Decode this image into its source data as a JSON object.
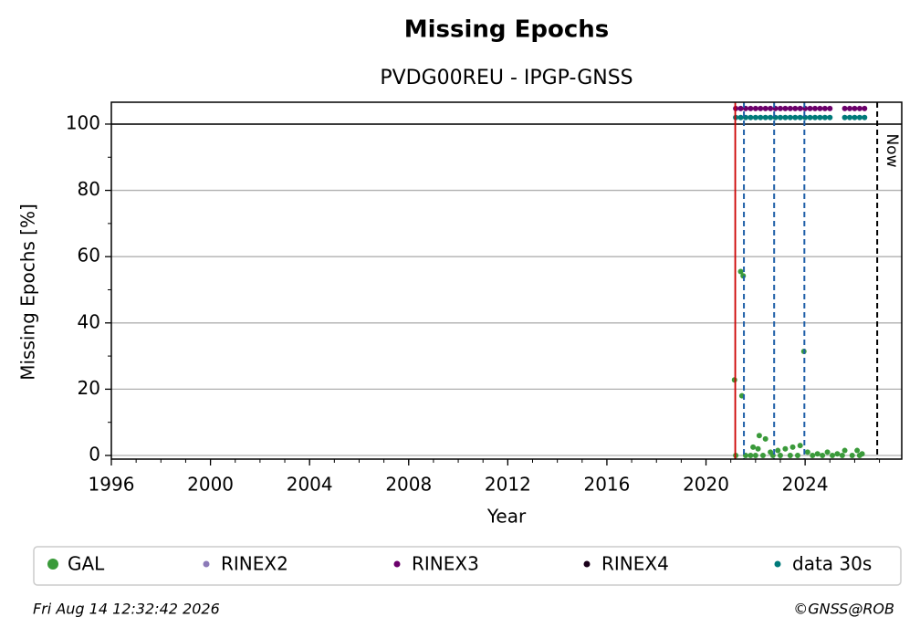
{
  "chart_data": {
    "type": "scatter",
    "title": "Missing Epochs",
    "subtitle": "PVDG00REU - IPGP-GNSS",
    "xlabel": "Year",
    "ylabel": "Missing Epochs [%]",
    "xlim": [
      1996,
      2027.9
    ],
    "ylim": [
      -1.1,
      106.6
    ],
    "xticks": [
      1996,
      2000,
      2004,
      2008,
      2012,
      2016,
      2020,
      2024
    ],
    "yticks": [
      0,
      20,
      40,
      60,
      80,
      100
    ],
    "grid": true,
    "hline": 100,
    "start_line": {
      "x": 2021.18,
      "color": "#cc0000"
    },
    "dashed_lines": {
      "x": [
        2021.53,
        2022.75,
        2023.97
      ],
      "color": "#1f5fa8"
    },
    "now": {
      "x": 2026.91,
      "label": "Now"
    },
    "series": [
      {
        "name": "GAL",
        "color": "#3a9a3a",
        "x": [
          2021.15,
          2021.2,
          2021.4,
          2021.5,
          2021.45,
          2023.95,
          2022.15,
          2022.4,
          2021.9,
          2022.1,
          2022.6,
          2022.9,
          2023.2,
          2023.5,
          2023.8,
          2024.1,
          2024.5,
          2024.9,
          2025.3,
          2025.6,
          2026.1,
          2026.3,
          2021.6,
          2021.8,
          2022.0,
          2022.3,
          2022.7,
          2023.0,
          2023.4,
          2023.7,
          2024.3,
          2024.7,
          2025.1,
          2025.5,
          2025.9,
          2026.2
        ],
        "values": [
          22.8,
          0,
          55.5,
          54.2,
          18,
          31.4,
          6,
          5,
          2.5,
          2,
          1,
          1.5,
          2,
          2.5,
          3,
          1,
          0.5,
          1,
          0.5,
          1.5,
          1.5,
          0.5,
          0,
          0,
          0,
          0,
          0,
          0,
          0,
          0,
          0,
          0,
          0,
          0,
          0,
          0
        ]
      },
      {
        "name": "RINEX2",
        "color": "#8c7ab8",
        "x": [],
        "values": []
      },
      {
        "name": "RINEX3",
        "color": "#6b006b",
        "x": [
          2021.2,
          2021.4,
          2021.6,
          2021.8,
          2022.0,
          2022.2,
          2022.4,
          2022.6,
          2022.8,
          2023.0,
          2023.2,
          2023.4,
          2023.6,
          2023.8,
          2024.0,
          2024.2,
          2024.4,
          2024.6,
          2024.8,
          2025.0,
          2025.6,
          2025.8,
          2026.0,
          2026.2,
          2026.4
        ],
        "values": [
          104.7,
          104.7,
          104.7,
          104.7,
          104.7,
          104.7,
          104.7,
          104.7,
          104.7,
          104.7,
          104.7,
          104.7,
          104.7,
          104.7,
          104.7,
          104.7,
          104.7,
          104.7,
          104.7,
          104.7,
          104.7,
          104.7,
          104.7,
          104.7,
          104.7
        ]
      },
      {
        "name": "RINEX4",
        "color": "#1a001a",
        "x": [],
        "values": []
      },
      {
        "name": "data 30s",
        "color": "#007a7a",
        "x": [
          2021.2,
          2021.4,
          2021.6,
          2021.8,
          2022.0,
          2022.2,
          2022.4,
          2022.6,
          2022.8,
          2023.0,
          2023.2,
          2023.4,
          2023.6,
          2023.8,
          2024.0,
          2024.2,
          2024.4,
          2024.6,
          2024.8,
          2025.0,
          2025.6,
          2025.8,
          2026.0,
          2026.2,
          2026.4
        ],
        "values": [
          102,
          102,
          102,
          102,
          102,
          102,
          102,
          102,
          102,
          102,
          102,
          102,
          102,
          102,
          102,
          102,
          102,
          102,
          102,
          102,
          102,
          102,
          102,
          102,
          102
        ]
      }
    ],
    "footer_left": "Fri Aug 14 12:32:42 2026",
    "footer_right": "©GNSS@ROB"
  }
}
